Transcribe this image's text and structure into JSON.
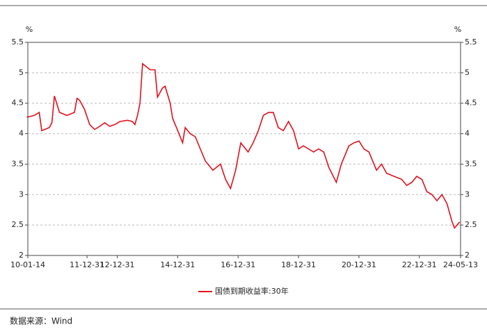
{
  "chart_data": {
    "type": "line",
    "y_label_left": "%",
    "y_label_right": "%",
    "source": "数据来源：Wind",
    "ylim": [
      2,
      5.5
    ],
    "yticks": [
      2,
      2.5,
      3,
      3.5,
      4,
      4.5,
      5,
      5.5
    ],
    "xlim": [
      "2010-01-14",
      "2024-05-13"
    ],
    "xticks": [
      {
        "value": "2010-01-14",
        "label": "10-01-14"
      },
      {
        "value": "2011-12-31",
        "label": "11-12-31"
      },
      {
        "value": "2012-12-31",
        "label": "12-12-31"
      },
      {
        "value": "2014-12-31",
        "label": "14-12-31"
      },
      {
        "value": "2016-12-31",
        "label": "16-12-31"
      },
      {
        "value": "2018-12-31",
        "label": "18-12-31"
      },
      {
        "value": "2020-12-31",
        "label": "20-12-31"
      },
      {
        "value": "2022-12-31",
        "label": "22-12-31"
      },
      {
        "value": "2024-05-13",
        "label": "24-05-13"
      }
    ],
    "grid": true,
    "legend": "bottom",
    "x": [
      "2010-01",
      "2010-04",
      "2010-06",
      "2010-07",
      "2010-10",
      "2010-11",
      "2010-12",
      "2011-02",
      "2011-05",
      "2011-08",
      "2011-09",
      "2011-10",
      "2011-12",
      "2012-02",
      "2012-04",
      "2012-06",
      "2012-08",
      "2012-10",
      "2012-12",
      "2013-02",
      "2013-05",
      "2013-07",
      "2013-08",
      "2013-09",
      "2013-10",
      "2013-11",
      "2014-02",
      "2014-04",
      "2014-05",
      "2014-07",
      "2014-08",
      "2014-10",
      "2014-11",
      "2015-01",
      "2015-03",
      "2015-04",
      "2015-06",
      "2015-08",
      "2015-10",
      "2015-12",
      "2016-03",
      "2016-06",
      "2016-08",
      "2016-10",
      "2016-12",
      "2017-02",
      "2017-05",
      "2017-07",
      "2017-09",
      "2017-11",
      "2018-01",
      "2018-03",
      "2018-05",
      "2018-07",
      "2018-09",
      "2018-11",
      "2019-01",
      "2019-03",
      "2019-05",
      "2019-07",
      "2019-09",
      "2019-11",
      "2020-01",
      "2020-04",
      "2020-06",
      "2020-09",
      "2020-11",
      "2021-01",
      "2021-03",
      "2021-05",
      "2021-08",
      "2021-10",
      "2021-12",
      "2022-03",
      "2022-06",
      "2022-08",
      "2022-10",
      "2022-12",
      "2023-02",
      "2023-04",
      "2023-06",
      "2023-08",
      "2023-10",
      "2023-12",
      "2024-02",
      "2024-03",
      "2024-05"
    ],
    "series": [
      {
        "name": "国债到期收益率:30年",
        "color": "#e0101c",
        "values": [
          4.27,
          4.3,
          4.35,
          4.05,
          4.1,
          4.18,
          4.62,
          4.35,
          4.3,
          4.35,
          4.58,
          4.55,
          4.4,
          4.15,
          4.07,
          4.12,
          4.18,
          4.12,
          4.15,
          4.2,
          4.22,
          4.2,
          4.15,
          4.3,
          4.5,
          5.15,
          5.05,
          5.05,
          4.6,
          4.75,
          4.78,
          4.5,
          4.25,
          4.05,
          3.85,
          4.1,
          4.0,
          3.95,
          3.75,
          3.55,
          3.4,
          3.5,
          3.25,
          3.1,
          3.4,
          3.85,
          3.7,
          3.85,
          4.05,
          4.3,
          4.35,
          4.35,
          4.1,
          4.05,
          4.2,
          4.05,
          3.75,
          3.8,
          3.75,
          3.7,
          3.75,
          3.7,
          3.45,
          3.2,
          3.5,
          3.8,
          3.85,
          3.88,
          3.75,
          3.7,
          3.4,
          3.5,
          3.35,
          3.3,
          3.25,
          3.15,
          3.2,
          3.3,
          3.25,
          3.05,
          3.0,
          2.9,
          3.0,
          2.85,
          2.55,
          2.45,
          2.55
        ]
      }
    ]
  }
}
